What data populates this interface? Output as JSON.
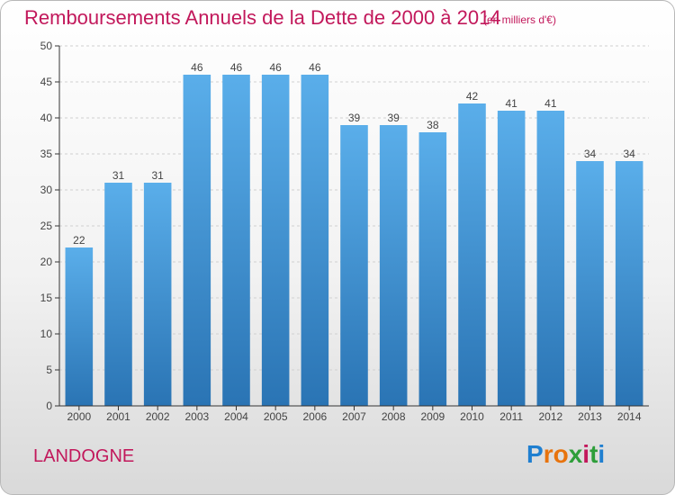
{
  "header": {
    "title": "Remboursements Annuels de la Dette de 2000 à 2014",
    "unit": "(en milliers d'€)"
  },
  "footer": {
    "place": "LANDOGNE",
    "brand": "Proxiti"
  },
  "colors": {
    "title": "#c2185b",
    "bar_top": "#5aaeea",
    "bar_bottom": "#2a74b4",
    "axis": "#333333"
  },
  "chart_data": {
    "type": "bar",
    "title": "Remboursements Annuels de la Dette de 2000 à 2014",
    "xlabel": "",
    "ylabel": "",
    "ylim": [
      0,
      50
    ],
    "yticks": [
      0,
      5,
      10,
      15,
      20,
      25,
      30,
      35,
      40,
      45,
      50
    ],
    "grid": true,
    "categories": [
      "2000",
      "2001",
      "2002",
      "2003",
      "2004",
      "2005",
      "2006",
      "2007",
      "2008",
      "2009",
      "2010",
      "2011",
      "2012",
      "2013",
      "2014"
    ],
    "values": [
      22,
      31,
      31,
      46,
      46,
      46,
      46,
      39,
      39,
      38,
      42,
      41,
      41,
      34,
      34
    ],
    "data_labels": [
      "22",
      "31",
      "31",
      "46",
      "46",
      "46",
      "46",
      "39",
      "39",
      "38",
      "42",
      "41",
      "41",
      "34",
      "34"
    ]
  }
}
